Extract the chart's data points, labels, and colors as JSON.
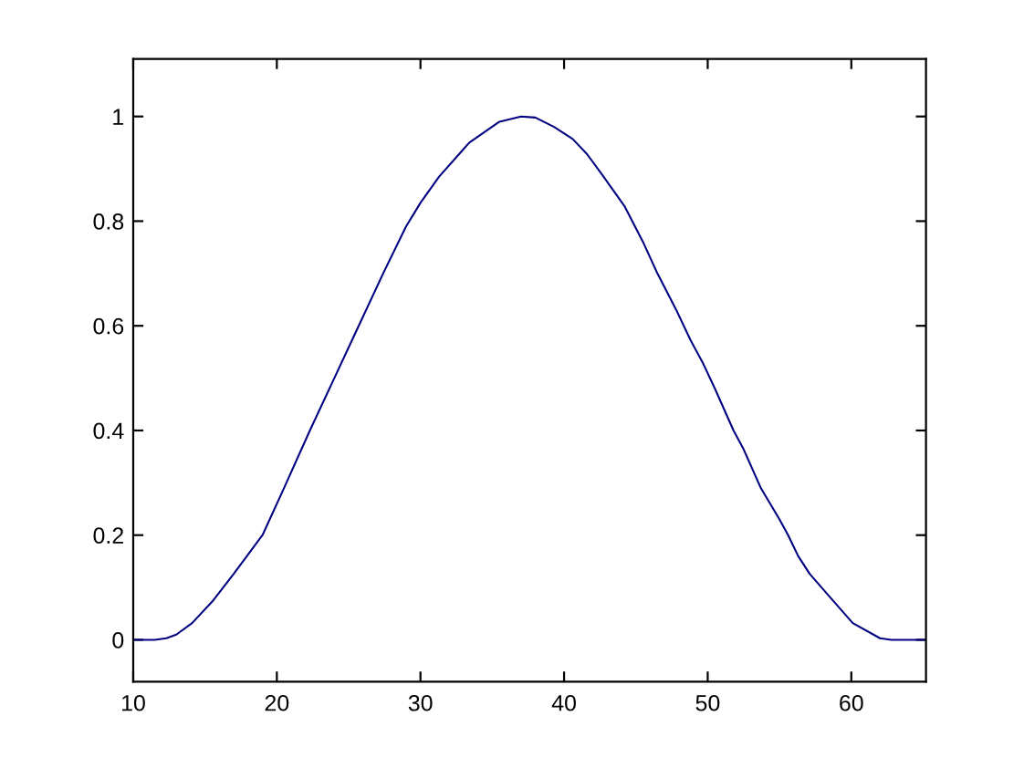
{
  "chart_data": {
    "type": "line",
    "x": [
      10,
      11.5,
      12.3,
      13,
      14.1,
      15.5,
      17,
      19,
      20.5,
      22.3,
      24,
      25.7,
      27.4,
      29,
      30,
      31.3,
      33.4,
      35.5,
      37,
      38,
      39.3,
      40.6,
      41.6,
      42.7,
      44.2,
      45.5,
      46.5,
      47.8,
      48.8,
      49.7,
      50.5,
      51.8,
      52.5,
      53.7,
      55,
      55.6,
      56.3,
      57.1,
      58.4,
      60.1,
      62,
      62.8,
      65.2
    ],
    "series": [
      {
        "color": "#000080",
        "values": [
          0,
          0,
          0.003,
          0.01,
          0.032,
          0.073,
          0.126,
          0.2,
          0.29,
          0.4,
          0.5,
          0.6,
          0.7,
          0.79,
          0.835,
          0.885,
          0.95,
          0.99,
          1,
          0.998,
          0.98,
          0.957,
          0.928,
          0.887,
          0.829,
          0.76,
          0.7,
          0.631,
          0.573,
          0.527,
          0.48,
          0.4,
          0.364,
          0.29,
          0.23,
          0.2,
          0.16,
          0.126,
          0.085,
          0.032,
          0.003,
          0,
          0
        ]
      }
    ],
    "xlim": [
      10,
      65.2
    ],
    "ylim": [
      -0.08,
      1.11
    ],
    "xticks": [
      10,
      20,
      30,
      40,
      50,
      60
    ],
    "yticks": [
      0,
      0.2,
      0.4,
      0.6,
      0.8,
      1
    ],
    "grid": false,
    "marker": "none",
    "line_style": "solid"
  }
}
